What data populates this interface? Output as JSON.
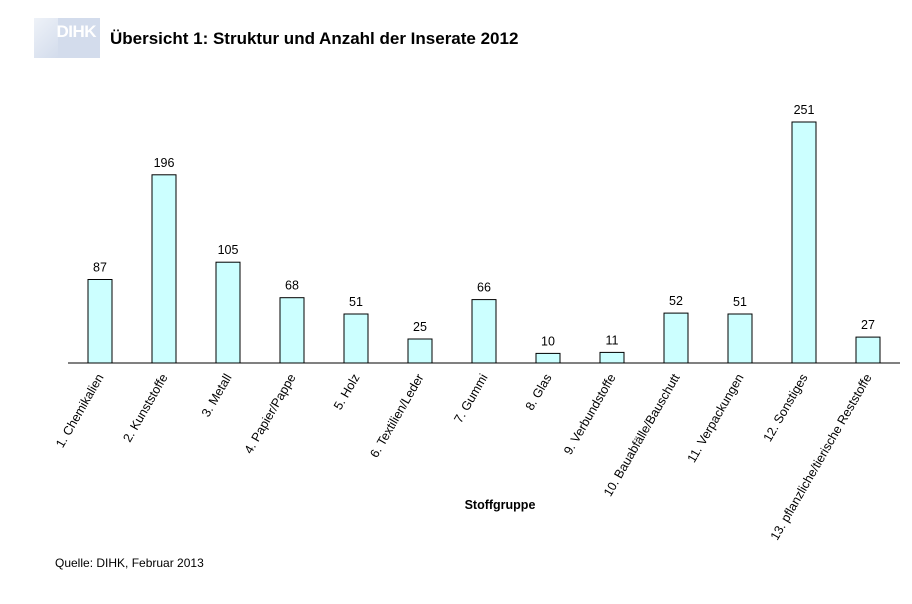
{
  "header": {
    "logo_text": "DIHK",
    "title": "Übersicht 1: Struktur und Anzahl der Inserate 2012"
  },
  "footer": {
    "source": "Quelle: DIHK, Februar 2013"
  },
  "colors": {
    "bar_fill": "#ccffff",
    "bar_stroke": "#000000",
    "logo_bg": "#d3dcec"
  },
  "chart_data": {
    "type": "bar",
    "title": "Übersicht 1: Struktur und Anzahl der Inserate 2012",
    "xlabel": "Stoffgruppe",
    "ylabel": "",
    "ylim": [
      0,
      260
    ],
    "grid": false,
    "legend": "none",
    "categories": [
      "1. Chemikalien",
      "2. Kunststoffe",
      "3. Metall",
      "4. Papier/Pappe",
      "5. Holz",
      "6. Textilien/Leder",
      "7. Gummi",
      "8. Glas",
      "9. Verbundstoffe",
      "10. Bauabfälle/Bauschutt",
      "11. Verpackungen",
      "12. Sonstiges",
      "13. pflanzliche/tierische Reststoffe"
    ],
    "values": [
      87,
      196,
      105,
      68,
      51,
      25,
      66,
      10,
      11,
      52,
      51,
      251,
      27
    ]
  }
}
